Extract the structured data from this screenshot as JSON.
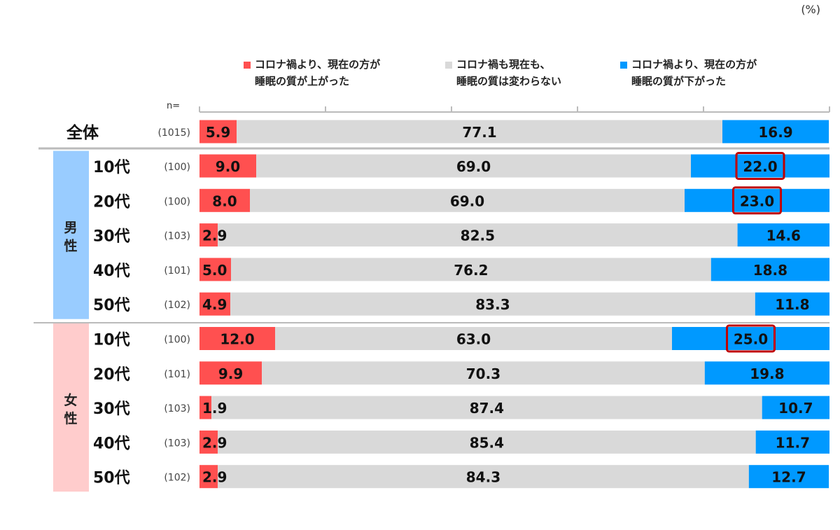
{
  "chart_data": {
    "type": "bar",
    "orientation": "horizontal-stacked-100",
    "unit": "(%)",
    "n_label": "n=",
    "legend": [
      {
        "line1": "コロナ禍より、現在の方が",
        "line2": "睡眠の質が上がった",
        "color": "#ff5050"
      },
      {
        "line1": "コロナ禍も現在も、",
        "line2": "睡眠の質は変わらない",
        "color": "#d9d9d9"
      },
      {
        "line1": "コロナ禍より、現在の方が",
        "line2": "睡眠の質が下がった",
        "color": "#0099ff"
      }
    ],
    "groups": [
      {
        "label": "",
        "color": ""
      },
      {
        "label": "男性",
        "color": "#99ccff"
      },
      {
        "label": "女性",
        "color": "#ffcccc"
      }
    ],
    "rows": [
      {
        "group": 0,
        "label": "全体",
        "n": "(1015)",
        "values": [
          5.9,
          77.1,
          16.9
        ],
        "highlight": false
      },
      {
        "group": 1,
        "label": "10代",
        "n": "(100)",
        "values": [
          9.0,
          69.0,
          22.0
        ],
        "highlight": true
      },
      {
        "group": 1,
        "label": "20代",
        "n": "(100)",
        "values": [
          8.0,
          69.0,
          23.0
        ],
        "highlight": true
      },
      {
        "group": 1,
        "label": "30代",
        "n": "(103)",
        "values": [
          2.9,
          82.5,
          14.6
        ],
        "highlight": false
      },
      {
        "group": 1,
        "label": "40代",
        "n": "(101)",
        "values": [
          5.0,
          76.2,
          18.8
        ],
        "highlight": false
      },
      {
        "group": 1,
        "label": "50代",
        "n": "(102)",
        "values": [
          4.9,
          83.3,
          11.8
        ],
        "highlight": false
      },
      {
        "group": 2,
        "label": "10代",
        "n": "(100)",
        "values": [
          12.0,
          63.0,
          25.0
        ],
        "highlight": true
      },
      {
        "group": 2,
        "label": "20代",
        "n": "(101)",
        "values": [
          9.9,
          70.3,
          19.8
        ],
        "highlight": false
      },
      {
        "group": 2,
        "label": "30代",
        "n": "(103)",
        "values": [
          1.9,
          87.4,
          10.7
        ],
        "highlight": false
      },
      {
        "group": 2,
        "label": "40代",
        "n": "(103)",
        "values": [
          2.9,
          85.4,
          11.7
        ],
        "highlight": false
      },
      {
        "group": 2,
        "label": "50代",
        "n": "(102)",
        "values": [
          2.9,
          84.3,
          12.7
        ],
        "highlight": false
      }
    ],
    "xlim": [
      0,
      100
    ],
    "ticks": [
      0,
      20,
      40,
      60,
      80,
      100
    ]
  }
}
